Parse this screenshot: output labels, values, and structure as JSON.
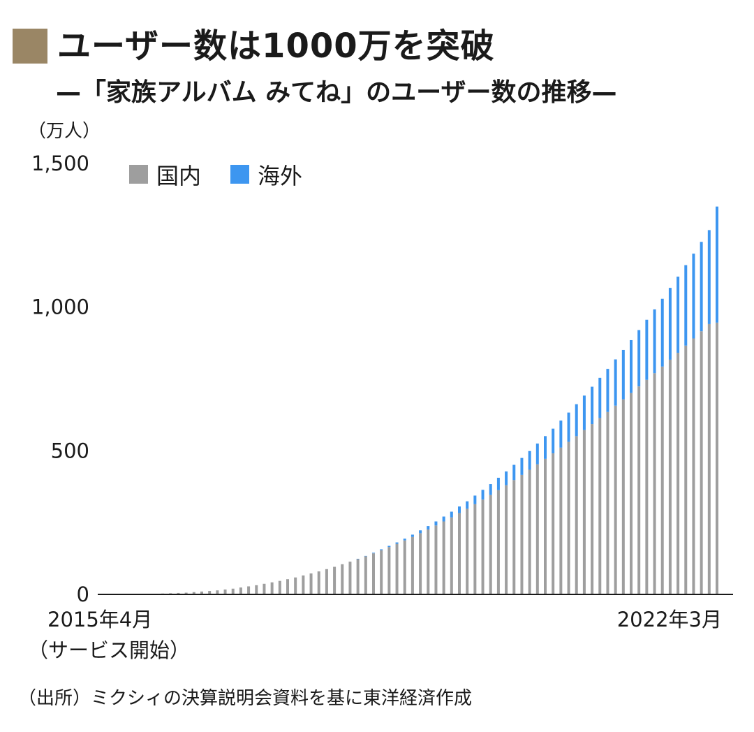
{
  "title": "ユーザー数は1000万を突破",
  "subtitle": "—「家族アルバム みてね」のユーザー数の推移—",
  "source": "（出所）ミクシィの決算説明会資料を基に東洋経済作成",
  "colors": {
    "title_square": "#9a8665",
    "domestic": "#9e9e9e",
    "overseas": "#3d96f0",
    "axis": "#1a1a1a"
  },
  "chart_data": {
    "type": "bar",
    "stacked": true,
    "unit_label": "（万人）",
    "ylim": [
      0,
      1500
    ],
    "yticks": [
      0,
      500,
      1000,
      1500
    ],
    "ytick_labels": [
      "0",
      "500",
      "1,000",
      "1,500"
    ],
    "x_start_label": "2015年4月",
    "x_start_sublabel": "（サービス開始）",
    "x_end_label": "2022年3月",
    "legend_position": "top-left",
    "grid": false,
    "series": [
      {
        "name": "国内",
        "color": "#9e9e9e",
        "values": [
          0,
          0,
          1,
          1,
          1,
          2,
          3,
          4,
          5,
          6,
          8,
          10,
          12,
          14,
          17,
          20,
          24,
          28,
          32,
          37,
          42,
          47,
          53,
          59,
          66,
          73,
          80,
          88,
          96,
          105,
          114,
          123,
          133,
          143,
          154,
          165,
          176,
          188,
          200,
          213,
          226,
          240,
          254,
          268,
          283,
          298,
          314,
          330,
          346,
          363,
          380,
          398,
          416,
          434,
          453,
          472,
          491,
          511,
          531,
          551,
          572,
          593,
          614,
          635,
          657,
          679,
          701,
          724,
          747,
          770,
          793,
          817,
          841,
          866,
          891,
          916,
          941,
          946
        ]
      },
      {
        "name": "海外",
        "color": "#3d96f0",
        "values": [
          0,
          0,
          0,
          0,
          0,
          0,
          0,
          0,
          0,
          0,
          0,
          0,
          0,
          0,
          0,
          0,
          0,
          0,
          0,
          0,
          0,
          0,
          0,
          0,
          0,
          0,
          0,
          0,
          0,
          0,
          0,
          1,
          1,
          2,
          3,
          4,
          5,
          6,
          8,
          10,
          12,
          14,
          17,
          20,
          23,
          26,
          30,
          34,
          38,
          43,
          48,
          53,
          59,
          65,
          72,
          79,
          86,
          94,
          102,
          111,
          120,
          130,
          140,
          150,
          161,
          172,
          184,
          196,
          209,
          222,
          236,
          250,
          265,
          280,
          295,
          311,
          327,
          404
        ]
      }
    ]
  },
  "legend": {
    "domestic": "国内",
    "overseas": "海外"
  }
}
